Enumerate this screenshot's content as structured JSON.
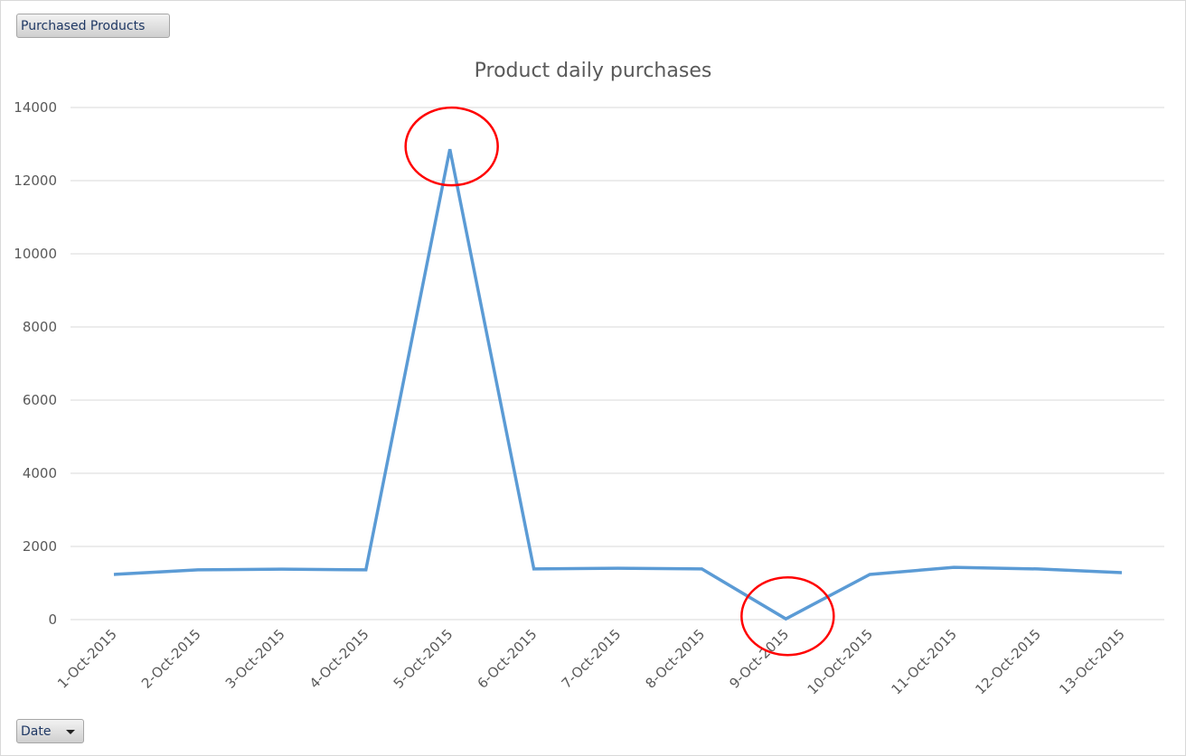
{
  "field_buttons": {
    "values_field": "Purchased Products",
    "axis_field": "Date"
  },
  "chart_data": {
    "type": "line",
    "title": "Product daily purchases",
    "xlabel": "",
    "ylabel": "",
    "ylim": [
      0,
      14000
    ],
    "yticks": [
      0,
      2000,
      4000,
      6000,
      8000,
      10000,
      12000,
      14000
    ],
    "grid": true,
    "legend": "none",
    "categories": [
      "1-Oct-2015",
      "2-Oct-2015",
      "3-Oct-2015",
      "4-Oct-2015",
      "5-Oct-2015",
      "6-Oct-2015",
      "7-Oct-2015",
      "8-Oct-2015",
      "9-Oct-2015",
      "10-Oct-2015",
      "11-Oct-2015",
      "12-Oct-2015",
      "13-Oct-2015"
    ],
    "series": [
      {
        "values": [
          1235,
          1360,
          1380,
          1360,
          12860,
          1385,
          1405,
          1385,
          20,
          1235,
          1430,
          1385,
          1285
        ],
        "color": "#5b9bd5"
      }
    ],
    "annotations": [
      {
        "type": "circle",
        "category": "5-Oct-2015",
        "note": "peak",
        "color": "#ff0000"
      },
      {
        "type": "circle",
        "category": "9-Oct-2015",
        "note": "dip",
        "color": "#ff0000"
      }
    ]
  }
}
